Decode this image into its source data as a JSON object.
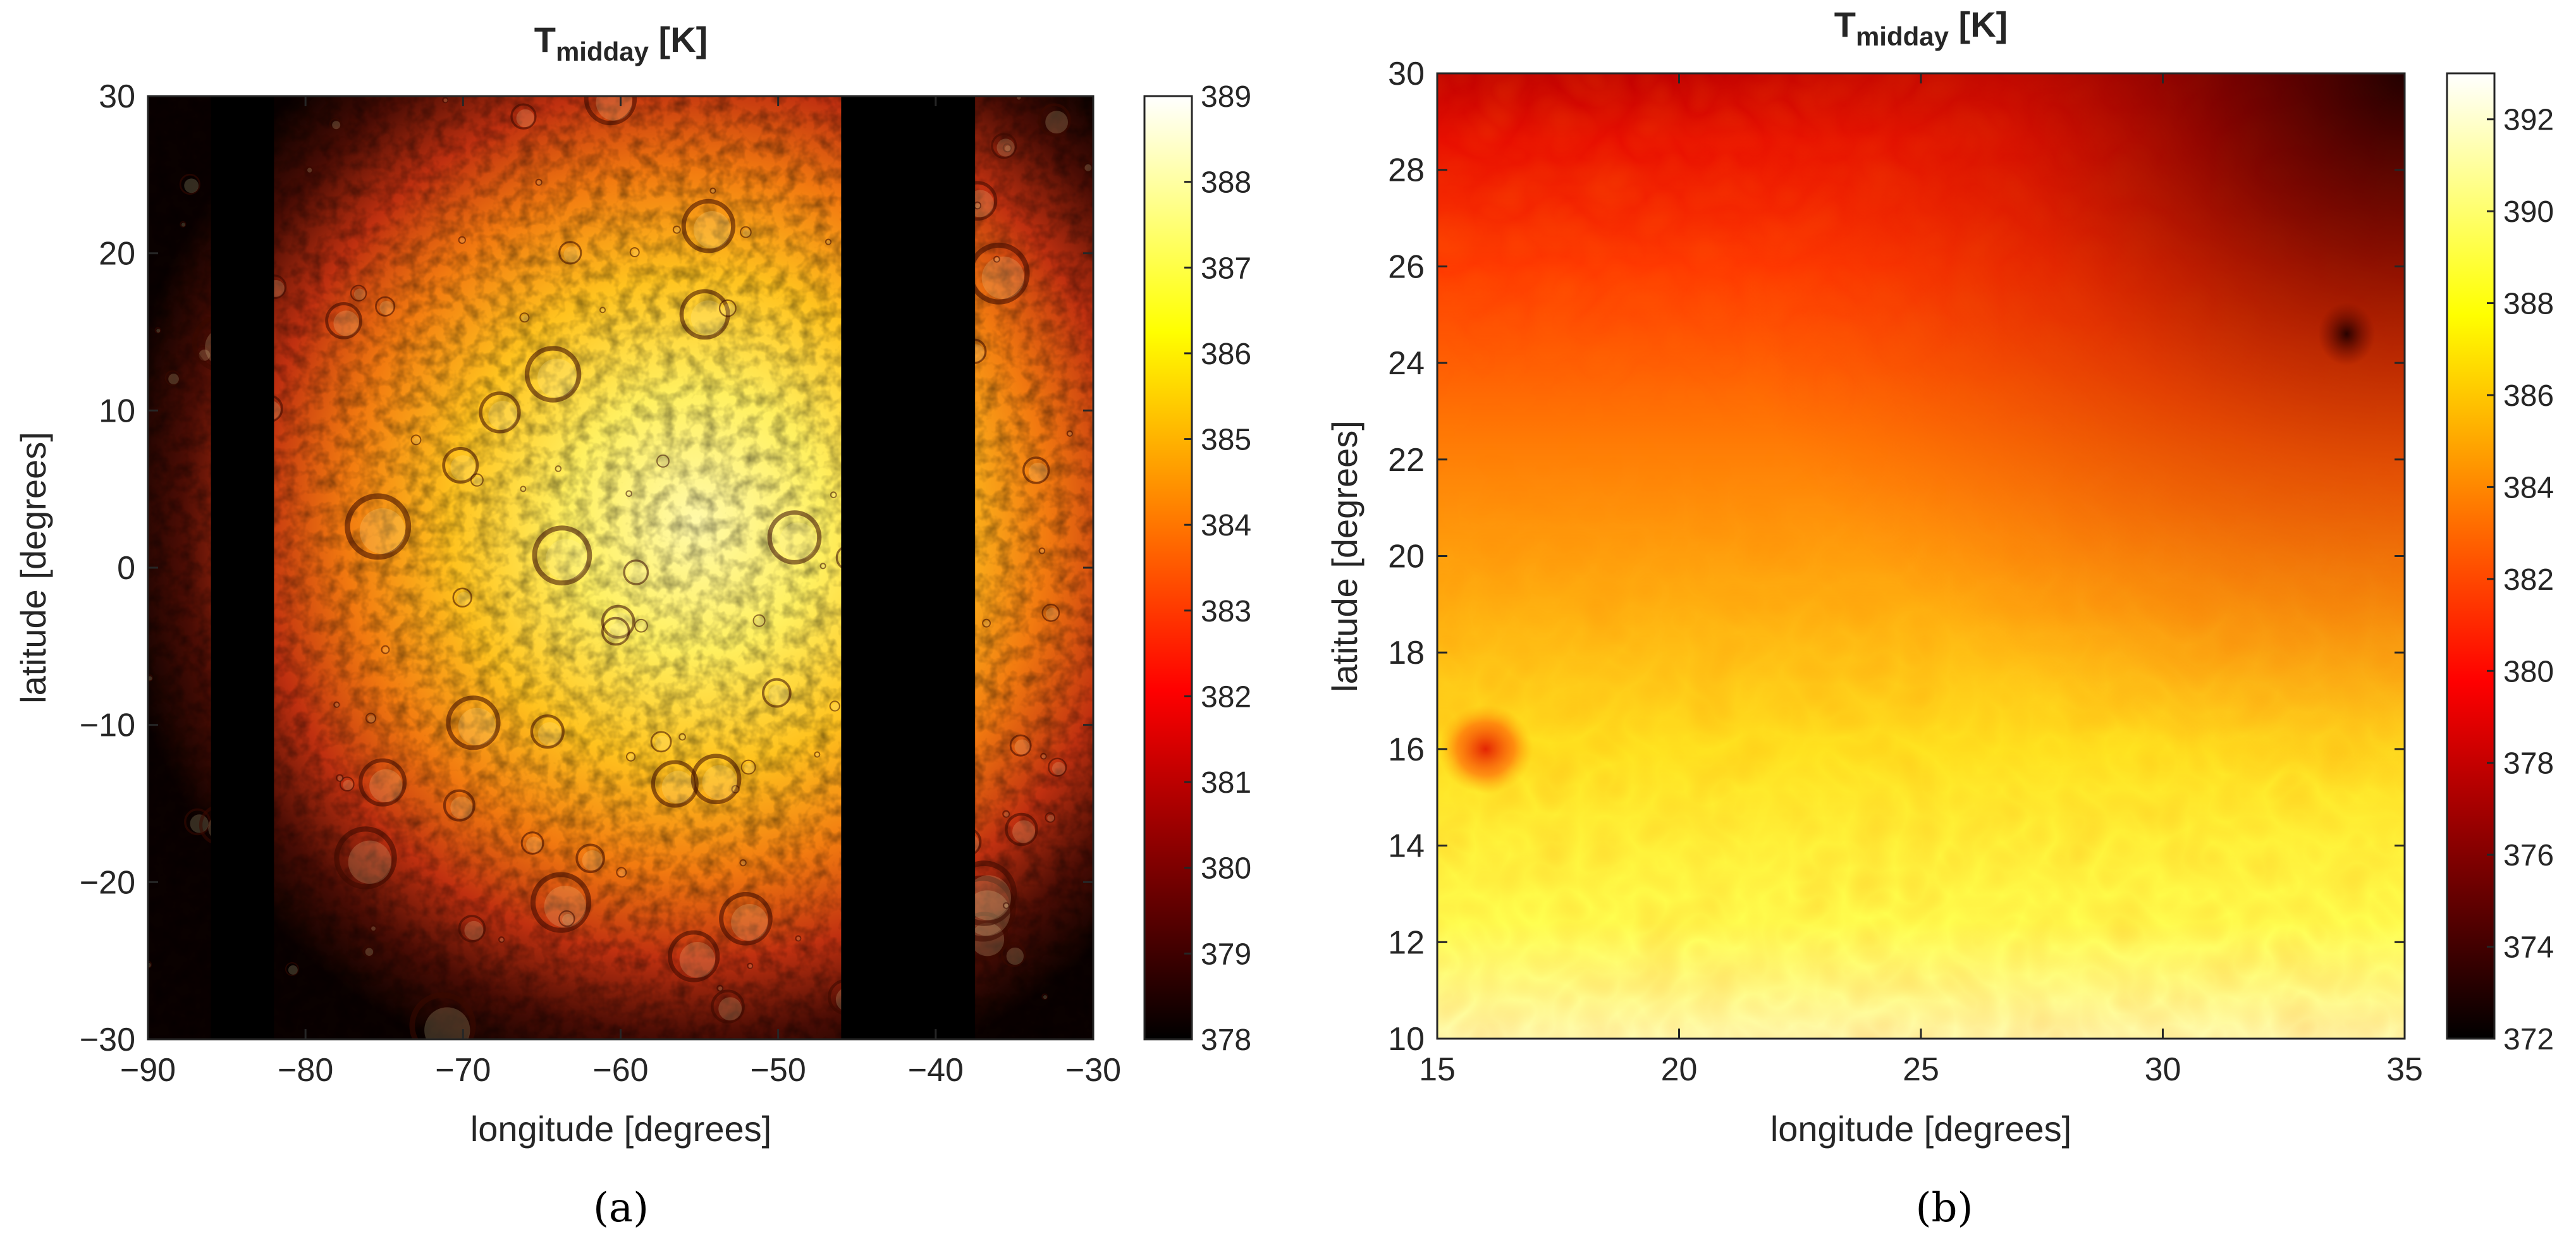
{
  "chart_data": [
    {
      "type": "heatmap",
      "panel": "(a)",
      "title": "T",
      "title_sub": "midday",
      "title_unit": " [K]",
      "xlabel": "longitude [degrees]",
      "ylabel": "latitude [degrees]",
      "xlim": [
        -90,
        -30
      ],
      "ylim": [
        -30,
        30
      ],
      "xticks": [
        -90,
        -80,
        -70,
        -60,
        -50,
        -40,
        -30
      ],
      "xtick_labels": [
        "−90",
        "−80",
        "−70",
        "−60",
        "−50",
        "−40",
        "−30"
      ],
      "yticks": [
        -30,
        -20,
        -10,
        0,
        10,
        20,
        30
      ],
      "ytick_labels": [
        "−30",
        "−20",
        "−10",
        "0",
        "10",
        "20",
        "30"
      ],
      "colorbar": {
        "range": [
          378,
          389
        ],
        "ticks": [
          378,
          379,
          380,
          381,
          382,
          383,
          384,
          385,
          386,
          387,
          388,
          389
        ],
        "tick_labels": [
          "378",
          "379",
          "380",
          "381",
          "382",
          "383",
          "384",
          "385",
          "386",
          "387",
          "388",
          "389"
        ],
        "colormap": "hot"
      },
      "grid": false,
      "no_data_bands": [
        [
          -86,
          -82
        ],
        [
          -46,
          -37.5
        ]
      ],
      "hot_center": [
        -55,
        3
      ],
      "description_note": "colored surface map with craters; hottest near center"
    },
    {
      "type": "heatmap",
      "panel": "(b)",
      "title": "T",
      "title_sub": "midday",
      "title_unit": " [K]",
      "xlabel": "longitude [degrees]",
      "ylabel": "latitude [degrees]",
      "xlim": [
        15,
        35
      ],
      "ylim": [
        10,
        30
      ],
      "xticks": [
        15,
        20,
        25,
        30,
        35
      ],
      "xtick_labels": [
        "15",
        "20",
        "25",
        "30",
        "35"
      ],
      "yticks": [
        10,
        12,
        14,
        16,
        18,
        20,
        22,
        24,
        26,
        28,
        30
      ],
      "ytick_labels": [
        "10",
        "12",
        "14",
        "16",
        "18",
        "20",
        "22",
        "24",
        "26",
        "28",
        "30"
      ],
      "colorbar": {
        "range": [
          372,
          393
        ],
        "ticks": [
          372,
          374,
          376,
          378,
          380,
          382,
          384,
          386,
          388,
          390,
          392
        ],
        "tick_labels": [
          "372",
          "374",
          "376",
          "378",
          "380",
          "382",
          "384",
          "386",
          "388",
          "390",
          "392"
        ],
        "colormap": "hot"
      },
      "grid": false,
      "features": [
        {
          "lon": 16,
          "lat": 16,
          "kind": "warm-red spot"
        },
        {
          "lon": 33.8,
          "lat": 24.6,
          "kind": "dark spot"
        }
      ]
    }
  ],
  "captions": [
    "(a)",
    "(b)"
  ]
}
